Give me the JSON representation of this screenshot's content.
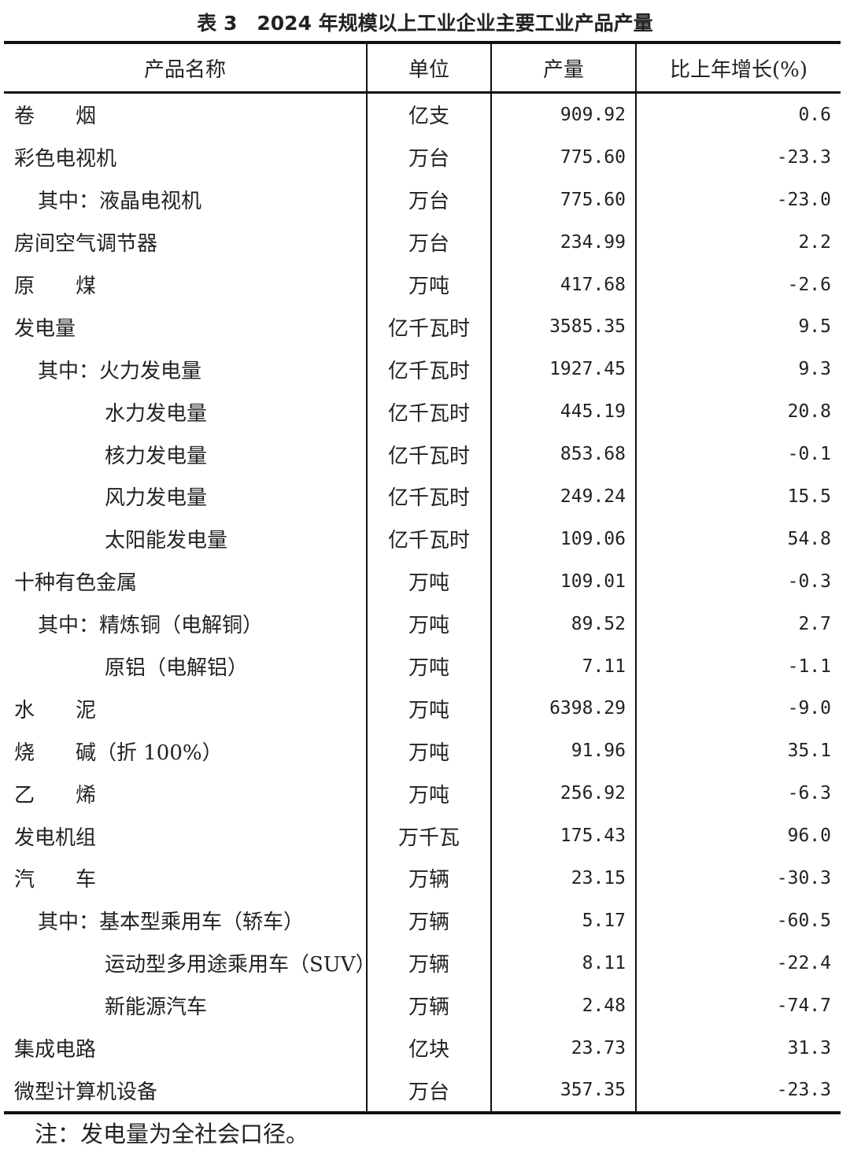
{
  "title": "表 3　2024 年规模以上工业企业主要工业产品产量",
  "headers": [
    "产品名称",
    "单位",
    "产量",
    "比上年增长(%)"
  ],
  "rows": [
    {
      "name": "卷　　烟",
      "level": 0,
      "unit": "亿支",
      "output": "909.92",
      "growth": "0.6"
    },
    {
      "name": "彩色电视机",
      "level": 0,
      "unit": "万台",
      "output": "775.60",
      "growth": "-23.3"
    },
    {
      "name": "其中：液晶电视机",
      "level": 1,
      "unit": "万台",
      "output": "775.60",
      "growth": "-23.0"
    },
    {
      "name": "房间空气调节器",
      "level": 0,
      "unit": "万台",
      "output": "234.99",
      "growth": "2.2"
    },
    {
      "name": "原　　煤",
      "level": 0,
      "unit": "万吨",
      "output": "417.68",
      "growth": "-2.6"
    },
    {
      "name": "发电量",
      "level": 0,
      "unit": "亿千瓦时",
      "output": "3585.35",
      "growth": "9.5"
    },
    {
      "name": "其中：火力发电量",
      "level": 1,
      "unit": "亿千瓦时",
      "output": "1927.45",
      "growth": "9.3"
    },
    {
      "name": "水力发电量",
      "level": 2,
      "unit": "亿千瓦时",
      "output": "445.19",
      "growth": "20.8"
    },
    {
      "name": "核力发电量",
      "level": 2,
      "unit": "亿千瓦时",
      "output": "853.68",
      "growth": "-0.1"
    },
    {
      "name": "风力发电量",
      "level": 2,
      "unit": "亿千瓦时",
      "output": "249.24",
      "growth": "15.5"
    },
    {
      "name": "太阳能发电量",
      "level": 2,
      "unit": "亿千瓦时",
      "output": "109.06",
      "growth": "54.8"
    },
    {
      "name": "十种有色金属",
      "level": 0,
      "unit": "万吨",
      "output": "109.01",
      "growth": "-0.3"
    },
    {
      "name": "其中：精炼铜（电解铜）",
      "level": 1,
      "unit": "万吨",
      "output": "89.52",
      "growth": "2.7"
    },
    {
      "name": "原铝（电解铝）",
      "level": 2,
      "unit": "万吨",
      "output": "7.11",
      "growth": "-1.1"
    },
    {
      "name": "水　　泥",
      "level": 0,
      "unit": "万吨",
      "output": "6398.29",
      "growth": "-9.0"
    },
    {
      "name": "烧　　碱（折 100%）",
      "level": 0,
      "unit": "万吨",
      "output": "91.96",
      "growth": "35.1"
    },
    {
      "name": "乙　　烯",
      "level": 0,
      "unit": "万吨",
      "output": "256.92",
      "growth": "-6.3"
    },
    {
      "name": "发电机组",
      "level": 0,
      "unit": "万千瓦",
      "output": "175.43",
      "growth": "96.0"
    },
    {
      "name": "汽　　车",
      "level": 0,
      "unit": "万辆",
      "output": "23.15",
      "growth": "-30.3"
    },
    {
      "name": "其中：基本型乘用车（轿车）",
      "level": 1,
      "unit": "万辆",
      "output": "5.17",
      "growth": "-60.5"
    },
    {
      "name": "运动型多用途乘用车（SUV）",
      "level": 2,
      "unit": "万辆",
      "output": "8.11",
      "growth": "-22.4"
    },
    {
      "name": "新能源汽车",
      "level": 2,
      "unit": "万辆",
      "output": "2.48",
      "growth": "-74.7"
    },
    {
      "name": "集成电路",
      "level": 0,
      "unit": "亿块",
      "output": "23.73",
      "growth": "31.3"
    },
    {
      "name": "微型计算机设备",
      "level": 0,
      "unit": "万台",
      "output": "357.35",
      "growth": "-23.3"
    }
  ],
  "note": "注：发电量为全社会口径。"
}
